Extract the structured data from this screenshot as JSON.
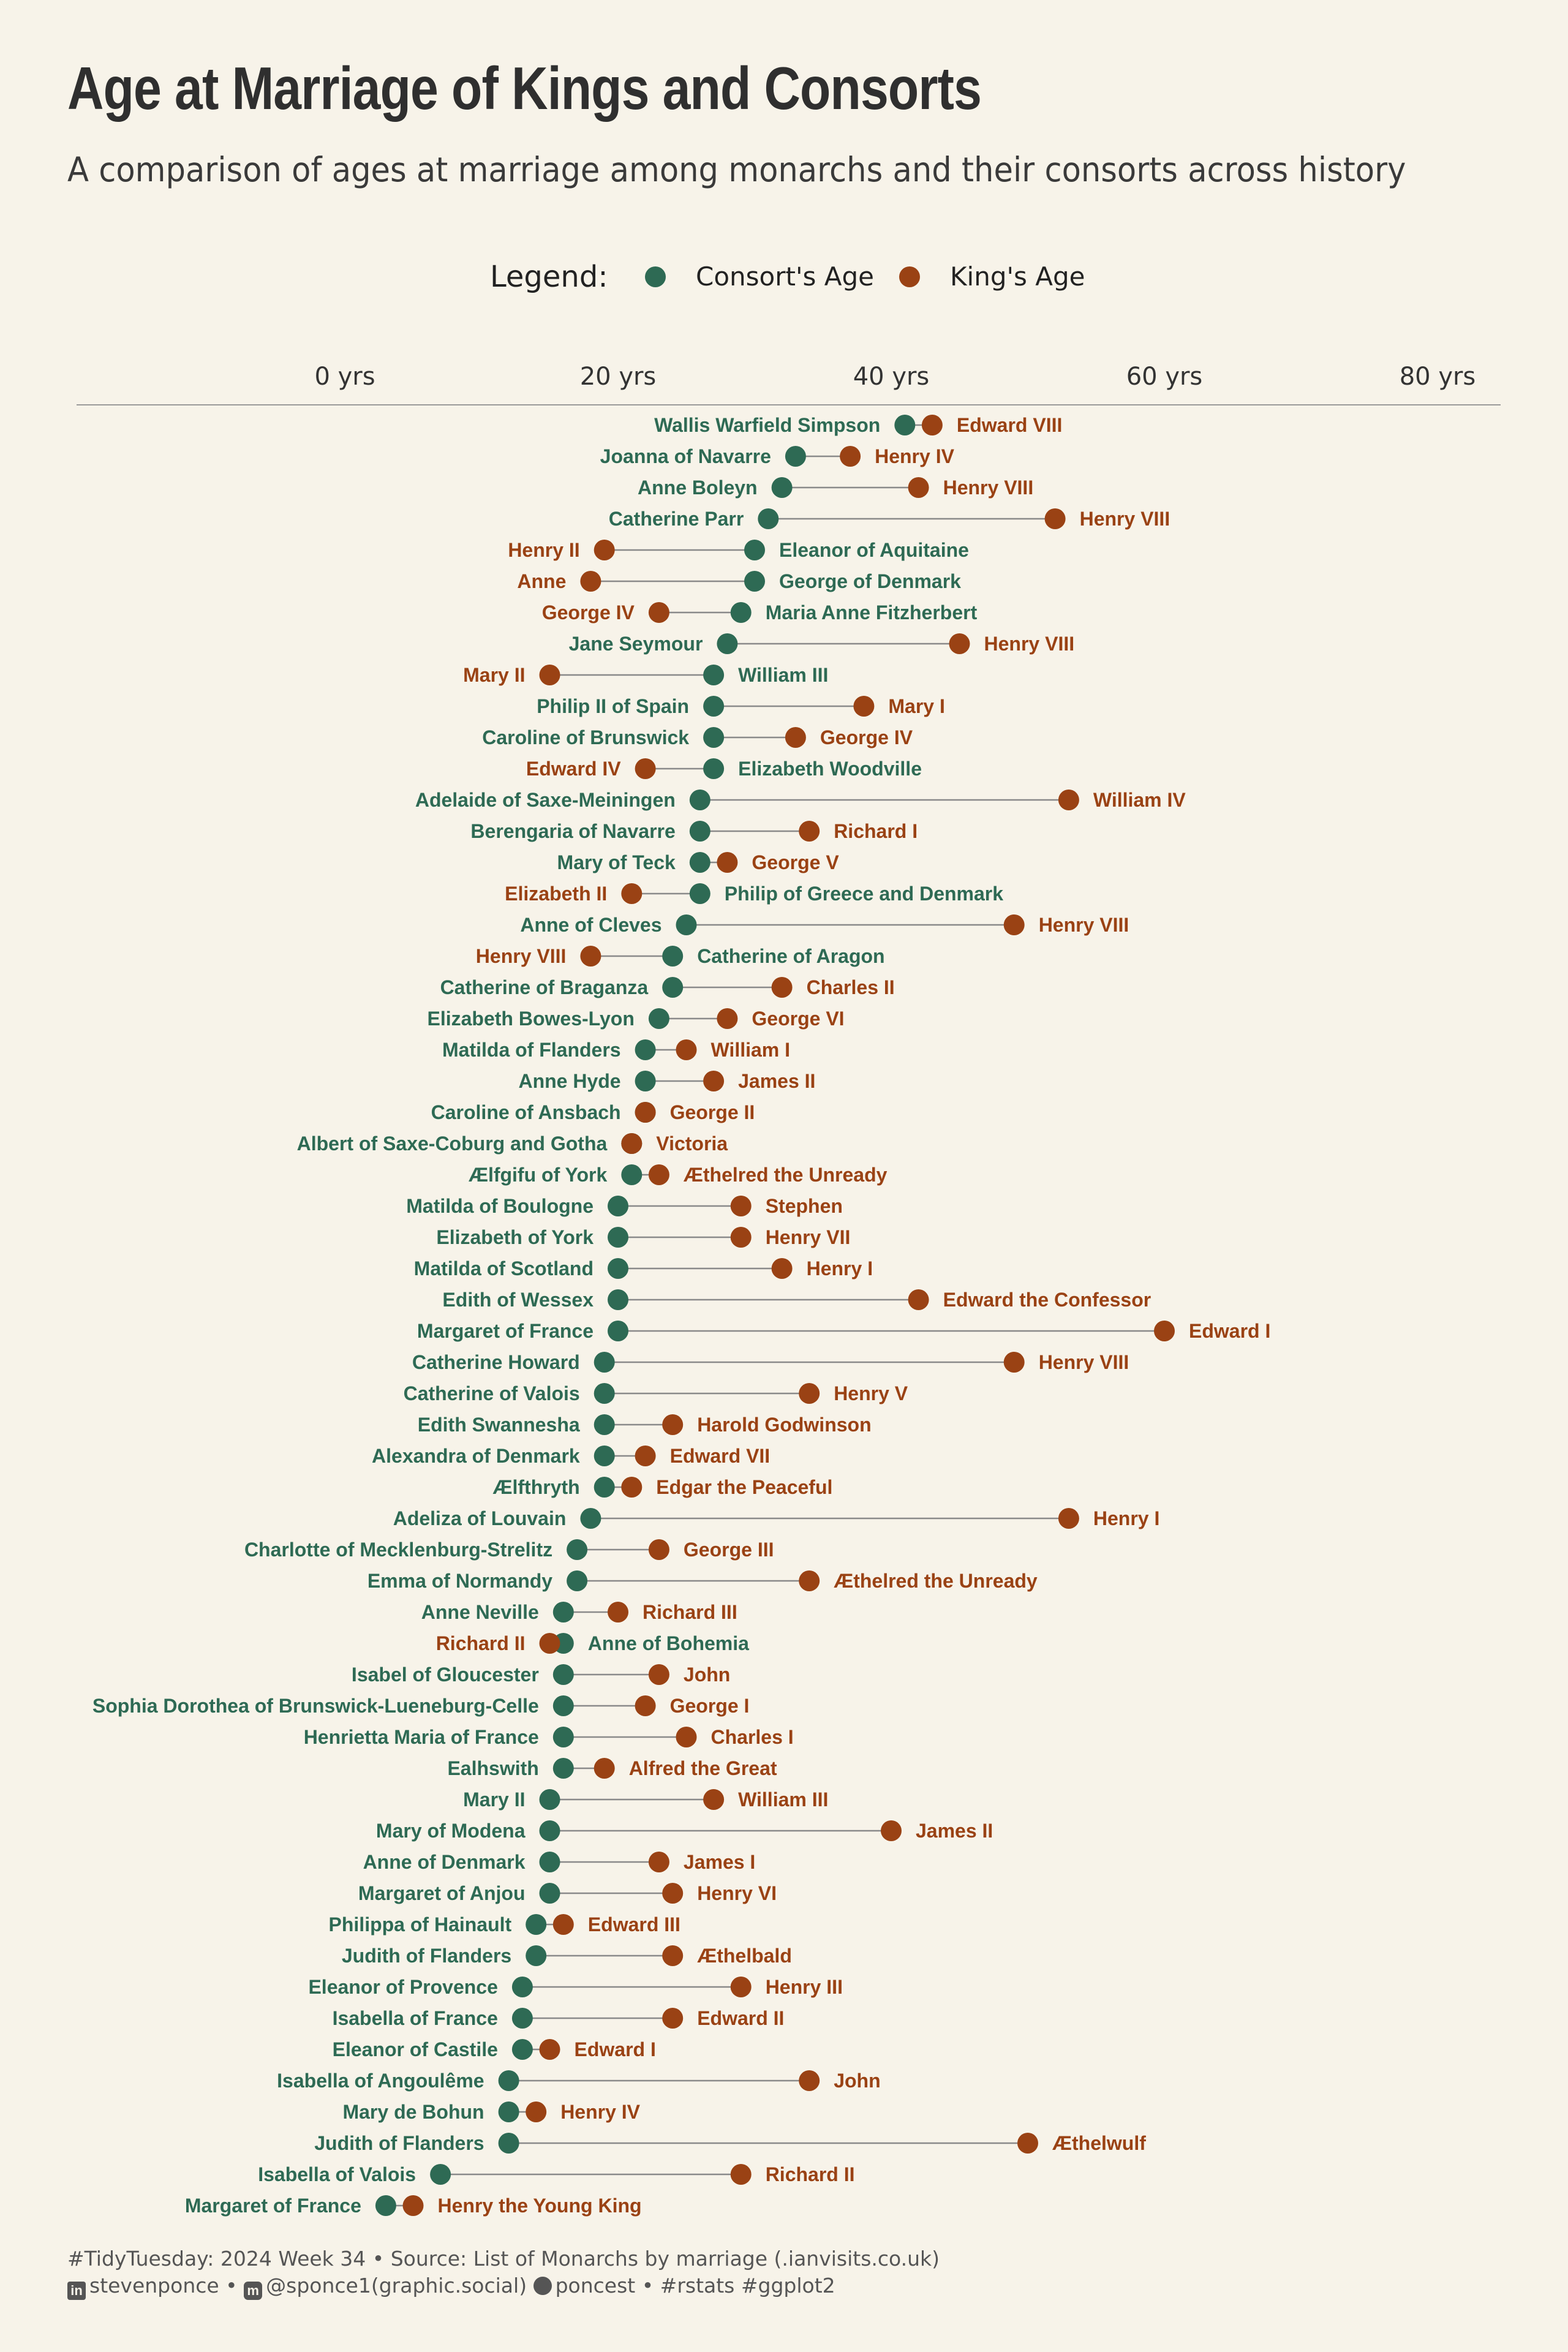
{
  "title": "Age at Marriage of Kings and Consorts",
  "subtitle": "A comparison of ages at marriage among monarchs and their consorts across history",
  "colors": {
    "background": "#f7f3e9",
    "consort": "#2e6a54",
    "king": "#9a4214",
    "segment": "#8a8a8a",
    "axis_text": "#333333"
  },
  "legend": {
    "title": "Legend:",
    "items": [
      "Consort's Age",
      "King's Age"
    ]
  },
  "caption": {
    "line1": "#TidyTuesday: 2024 Week 34 • Source: List of Monarchs by marriage (.ianvisits.co.uk)",
    "linkedin": "stevenponce",
    "mastodon": "@sponce1(graphic.social)",
    "github": "poncest",
    "tags": "#rstats #ggplot2"
  },
  "chart_data": {
    "type": "dumbbell",
    "x_axis": {
      "min": -19,
      "max": 85,
      "ticks": [
        0,
        20,
        40,
        60,
        80
      ],
      "tick_labels": [
        "0 yrs",
        "20 yrs",
        "40 yrs",
        "60 yrs",
        "80 yrs"
      ],
      "position": "top"
    },
    "grid": false,
    "legend_position": "top",
    "series": [
      {
        "name": "Consort's Age",
        "color": "#2e6a54"
      },
      {
        "name": "King's Age",
        "color": "#9a4214"
      }
    ],
    "rows": [
      {
        "king": "Edward VIII",
        "king_age": 43,
        "consort": "Wallis Warfield Simpson",
        "consort_age": 41
      },
      {
        "king": "Henry IV",
        "king_age": 37,
        "consort": "Joanna of Navarre",
        "consort_age": 33
      },
      {
        "king": "Henry VIII",
        "king_age": 42,
        "consort": "Anne Boleyn",
        "consort_age": 32
      },
      {
        "king": "Henry VIII",
        "king_age": 52,
        "consort": "Catherine Parr",
        "consort_age": 31
      },
      {
        "king": "Henry II",
        "king_age": 19,
        "consort": "Eleanor of Aquitaine",
        "consort_age": 30
      },
      {
        "king": "Anne",
        "king_age": 18,
        "consort": "George of Denmark",
        "consort_age": 30
      },
      {
        "king": "George IV",
        "king_age": 23,
        "consort": "Maria Anne Fitzherbert",
        "consort_age": 29
      },
      {
        "king": "Henry VIII",
        "king_age": 45,
        "consort": "Jane Seymour",
        "consort_age": 28
      },
      {
        "king": "Mary II",
        "king_age": 15,
        "consort": "William III",
        "consort_age": 27
      },
      {
        "king": "Mary I",
        "king_age": 38,
        "consort": "Philip II of Spain",
        "consort_age": 27
      },
      {
        "king": "George IV",
        "king_age": 33,
        "consort": "Caroline of Brunswick",
        "consort_age": 27
      },
      {
        "king": "Edward IV",
        "king_age": 22,
        "consort": "Elizabeth Woodville",
        "consort_age": 27
      },
      {
        "king": "William IV",
        "king_age": 53,
        "consort": "Adelaide of Saxe-Meiningen",
        "consort_age": 26
      },
      {
        "king": "Richard I",
        "king_age": 34,
        "consort": "Berengaria of Navarre",
        "consort_age": 26
      },
      {
        "king": "George V",
        "king_age": 28,
        "consort": "Mary of Teck",
        "consort_age": 26
      },
      {
        "king": "Elizabeth II",
        "king_age": 21,
        "consort": "Philip of Greece and Denmark",
        "consort_age": 26
      },
      {
        "king": "Henry VIII",
        "king_age": 49,
        "consort": "Anne of Cleves",
        "consort_age": 25
      },
      {
        "king": "Henry VIII",
        "king_age": 18,
        "consort": "Catherine of Aragon",
        "consort_age": 24
      },
      {
        "king": "Charles II",
        "king_age": 32,
        "consort": "Catherine of Braganza",
        "consort_age": 24
      },
      {
        "king": "George VI",
        "king_age": 28,
        "consort": "Elizabeth Bowes-Lyon",
        "consort_age": 23
      },
      {
        "king": "William I",
        "king_age": 25,
        "consort": "Matilda of Flanders",
        "consort_age": 22
      },
      {
        "king": "James II",
        "king_age": 27,
        "consort": "Anne Hyde",
        "consort_age": 22
      },
      {
        "king": "George II",
        "king_age": 22,
        "consort": "Caroline of Ansbach",
        "consort_age": 22
      },
      {
        "king": "Victoria",
        "king_age": 21,
        "consort": "Albert of Saxe-Coburg and Gotha",
        "consort_age": 21
      },
      {
        "king": "Æthelred the Unready",
        "king_age": 23,
        "consort": "Ælfgifu of York",
        "consort_age": 21
      },
      {
        "king": "Stephen",
        "king_age": 29,
        "consort": "Matilda of Boulogne",
        "consort_age": 20
      },
      {
        "king": "Henry VII",
        "king_age": 29,
        "consort": "Elizabeth of York",
        "consort_age": 20
      },
      {
        "king": "Henry I",
        "king_age": 32,
        "consort": "Matilda of Scotland",
        "consort_age": 20
      },
      {
        "king": "Edward the Confessor",
        "king_age": 42,
        "consort": "Edith of Wessex",
        "consort_age": 20
      },
      {
        "king": "Edward I",
        "king_age": 60,
        "consort": "Margaret of France",
        "consort_age": 20
      },
      {
        "king": "Henry VIII",
        "king_age": 49,
        "consort": "Catherine Howard",
        "consort_age": 19
      },
      {
        "king": "Henry V",
        "king_age": 34,
        "consort": "Catherine of Valois",
        "consort_age": 19
      },
      {
        "king": "Harold Godwinson",
        "king_age": 24,
        "consort": "Edith Swannesha",
        "consort_age": 19
      },
      {
        "king": "Edward VII",
        "king_age": 22,
        "consort": "Alexandra of Denmark",
        "consort_age": 19
      },
      {
        "king": "Edgar the Peaceful",
        "king_age": 21,
        "consort": "Ælfthryth",
        "consort_age": 19
      },
      {
        "king": "Henry I",
        "king_age": 53,
        "consort": "Adeliza of Louvain",
        "consort_age": 18
      },
      {
        "king": "George III",
        "king_age": 23,
        "consort": "Charlotte of Mecklenburg-Strelitz",
        "consort_age": 17
      },
      {
        "king": "Æthelred the Unready",
        "king_age": 34,
        "consort": "Emma of Normandy",
        "consort_age": 17
      },
      {
        "king": "Richard III",
        "king_age": 20,
        "consort": "Anne Neville",
        "consort_age": 16
      },
      {
        "king": "Richard II",
        "king_age": 15,
        "consort": "Anne of Bohemia",
        "consort_age": 16
      },
      {
        "king": "John",
        "king_age": 23,
        "consort": "Isabel of Gloucester",
        "consort_age": 16
      },
      {
        "king": "George I",
        "king_age": 22,
        "consort": "Sophia Dorothea of Brunswick-Lueneburg-Celle",
        "consort_age": 16
      },
      {
        "king": "Charles I",
        "king_age": 25,
        "consort": "Henrietta Maria of France",
        "consort_age": 16
      },
      {
        "king": "Alfred the Great",
        "king_age": 19,
        "consort": "Ealhswith",
        "consort_age": 16
      },
      {
        "king": "William III",
        "king_age": 27,
        "consort": "Mary II",
        "consort_age": 15
      },
      {
        "king": "James II",
        "king_age": 40,
        "consort": "Mary of Modena",
        "consort_age": 15
      },
      {
        "king": "James I",
        "king_age": 23,
        "consort": "Anne of Denmark",
        "consort_age": 15
      },
      {
        "king": "Henry VI",
        "king_age": 24,
        "consort": "Margaret of Anjou",
        "consort_age": 15
      },
      {
        "king": "Edward III",
        "king_age": 16,
        "consort": "Philippa of Hainault",
        "consort_age": 14
      },
      {
        "king": "Æthelbald",
        "king_age": 24,
        "consort": "Judith of Flanders",
        "consort_age": 14
      },
      {
        "king": "Henry III",
        "king_age": 29,
        "consort": "Eleanor of Provence",
        "consort_age": 13
      },
      {
        "king": "Edward II",
        "king_age": 24,
        "consort": "Isabella of France",
        "consort_age": 13
      },
      {
        "king": "Edward I",
        "king_age": 15,
        "consort": "Eleanor of Castile",
        "consort_age": 13
      },
      {
        "king": "John",
        "king_age": 34,
        "consort": "Isabella of Angoulême",
        "consort_age": 12
      },
      {
        "king": "Henry IV",
        "king_age": 14,
        "consort": "Mary de Bohun",
        "consort_age": 12
      },
      {
        "king": "Æthelwulf",
        "king_age": 50,
        "consort": "Judith of Flanders",
        "consort_age": 12
      },
      {
        "king": "Richard II",
        "king_age": 29,
        "consort": "Isabella of Valois",
        "consort_age": 7
      },
      {
        "king": "Henry the Young King",
        "king_age": 5,
        "consort": "Margaret of France",
        "consort_age": 3
      }
    ]
  }
}
